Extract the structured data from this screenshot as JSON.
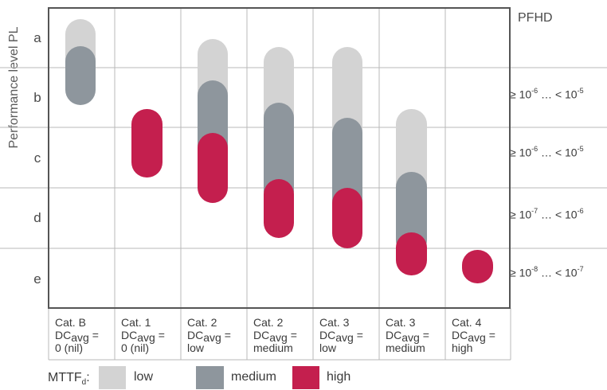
{
  "y_axis_label": "Performance level  PL",
  "pfhd_header": "PFHD",
  "pl_levels": [
    "a",
    "b",
    "c",
    "d",
    "e"
  ],
  "pfhd_ranges": [
    {
      "lo_exp": "-6",
      "hi_exp": "-5"
    },
    {
      "lo_exp": "-6",
      "hi_exp": "-5"
    },
    {
      "lo_exp": "-7",
      "hi_exp": "-6"
    },
    {
      "lo_exp": "-8",
      "hi_exp": "-7"
    }
  ],
  "pfhd_text": {
    "ge": "≥ 10",
    "ellipsis": " … < 10"
  },
  "categories": [
    {
      "cat": "Cat. B",
      "dc_prefix": "DC",
      "dc_sub": "avg",
      "dc_eq": " =",
      "dc_value": "0 (nil)"
    },
    {
      "cat": "Cat. 1",
      "dc_prefix": "DC",
      "dc_sub": "avg",
      "dc_eq": " =",
      "dc_value": "0 (nil)"
    },
    {
      "cat": "Cat. 2",
      "dc_prefix": "DC",
      "dc_sub": "avg",
      "dc_eq": " =",
      "dc_value": "low"
    },
    {
      "cat": "Cat. 2",
      "dc_prefix": "DC",
      "dc_sub": "avg",
      "dc_eq": " =",
      "dc_value": "medium"
    },
    {
      "cat": "Cat. 3",
      "dc_prefix": "DC",
      "dc_sub": "avg",
      "dc_eq": " =",
      "dc_value": "low"
    },
    {
      "cat": "Cat. 3",
      "dc_prefix": "DC",
      "dc_sub": "avg",
      "dc_eq": " =",
      "dc_value": "medium"
    },
    {
      "cat": "Cat. 4",
      "dc_prefix": "DC",
      "dc_sub": "avg",
      "dc_eq": " =",
      "dc_value": "high"
    }
  ],
  "legend": {
    "label_main": "MTTF",
    "label_sub": "d",
    "label_colon": ":",
    "items": [
      {
        "label": "low",
        "color": "#d3d3d3"
      },
      {
        "label": "medium",
        "color": "#8e969d"
      },
      {
        "label": "high",
        "color": "#c41f4e"
      }
    ]
  },
  "colors": {
    "low": "#d3d3d3",
    "medium": "#8e969d",
    "high": "#c41f4e",
    "grid": "#b8b8b8",
    "border": "#555555"
  }
}
